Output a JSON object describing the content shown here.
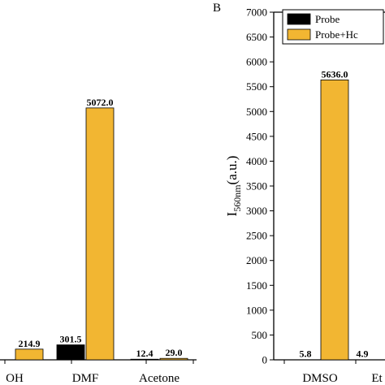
{
  "chart_data": [
    {
      "type": "bar",
      "panel": "A",
      "categories": [
        "OH",
        "DMF",
        "Acetone"
      ],
      "series": [
        {
          "name": "Probe",
          "color": "#000000",
          "values": [
            null,
            301.5,
            12.4
          ]
        },
        {
          "name": "Probe+Hc",
          "color": "#f2b632",
          "values": [
            214.9,
            5072.0,
            29.0
          ]
        }
      ],
      "data_labels": {
        "probe": [
          "",
          "301.5",
          "12.4"
        ],
        "probe_hc": [
          "214.9",
          "5072.0",
          "29.0"
        ]
      },
      "ylim": [
        0,
        7000
      ],
      "partially_visible": true
    },
    {
      "type": "bar",
      "panel": "B",
      "panel_label": "B",
      "categories": [
        "DMSO",
        "Et"
      ],
      "series": [
        {
          "name": "Probe",
          "color": "#000000",
          "values": [
            5.8,
            4.9
          ]
        },
        {
          "name": "Probe+Hc",
          "color": "#f2b632",
          "values": [
            5636.0,
            null
          ]
        }
      ],
      "data_labels": {
        "probe": [
          "5.8",
          "4.9"
        ],
        "probe_hc": [
          "5636.0",
          ""
        ]
      },
      "ylabel_main": "I",
      "ylabel_sub": "560nm",
      "ylabel_unit": "(a.u.)",
      "ylim": [
        0,
        7000
      ],
      "yticks": [
        "0",
        "500",
        "1000",
        "1500",
        "2000",
        "2500",
        "3000",
        "3500",
        "4000",
        "4500",
        "5000",
        "5500",
        "6000",
        "6500",
        "7000"
      ],
      "legend": [
        "Probe",
        "Probe+Hc"
      ],
      "legend_position": "top-left",
      "partially_visible": true
    }
  ]
}
